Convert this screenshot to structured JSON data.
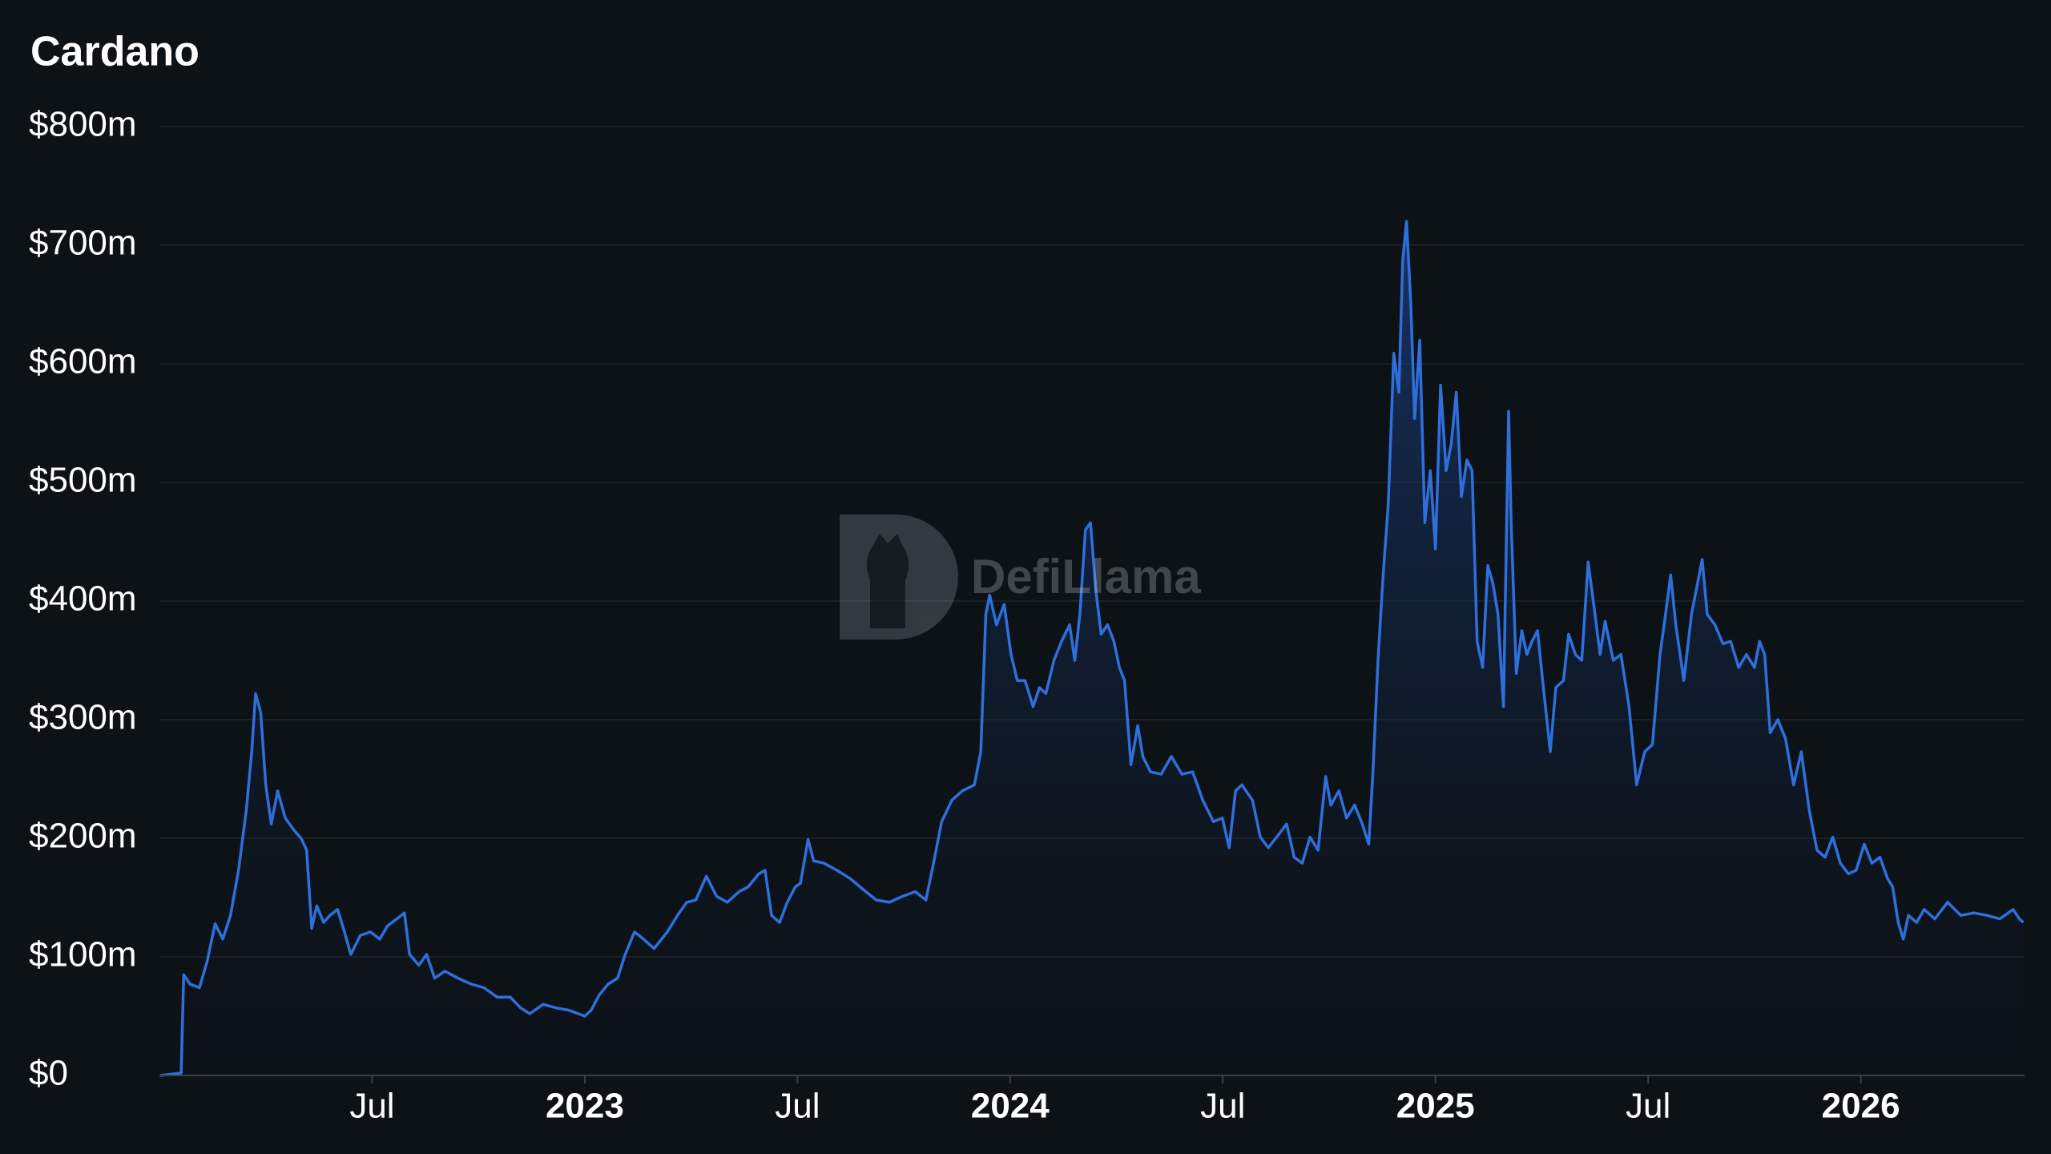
{
  "chart_data": {
    "type": "area",
    "title": "Cardano",
    "watermark": "DefiLlama",
    "color": "#2f6fdc",
    "x": [
      2022.002,
      2022.051,
      2022.057,
      2022.072,
      2022.094,
      2022.112,
      2022.131,
      2022.149,
      2022.167,
      2022.186,
      2022.204,
      2022.217,
      2022.226,
      2022.238,
      2022.25,
      2022.263,
      2022.278,
      2022.296,
      2022.318,
      2022.333,
      2022.346,
      2022.358,
      2022.37,
      2022.386,
      2022.401,
      2022.419,
      2022.435,
      2022.45,
      2022.472,
      2022.496,
      2022.518,
      2022.536,
      2022.558,
      2022.576,
      2022.588,
      2022.61,
      2022.628,
      2022.647,
      2022.671,
      2022.702,
      2022.733,
      2022.763,
      2022.794,
      2022.825,
      2022.849,
      2022.871,
      2022.902,
      2022.932,
      2022.963,
      2022.985,
      2023.0,
      2023.015,
      2023.034,
      2023.055,
      2023.077,
      2023.095,
      2023.117,
      2023.138,
      2023.163,
      2023.194,
      2023.218,
      2023.24,
      2023.261,
      2023.286,
      2023.31,
      2023.335,
      2023.363,
      2023.384,
      2023.409,
      2023.424,
      2023.439,
      2023.458,
      2023.476,
      2023.495,
      2023.507,
      2023.525,
      2023.538,
      2023.562,
      2023.593,
      2023.624,
      2023.654,
      2023.685,
      2023.716,
      2023.747,
      2023.777,
      2023.802,
      2023.82,
      2023.839,
      2023.863,
      2023.888,
      2023.916,
      2023.931,
      2023.943,
      2023.952,
      2023.968,
      2023.986,
      2024.002,
      2024.017,
      2024.035,
      2024.054,
      2024.069,
      2024.084,
      2024.103,
      2024.121,
      2024.14,
      2024.152,
      2024.164,
      2024.177,
      2024.189,
      2024.201,
      2024.214,
      2024.229,
      2024.244,
      2024.257,
      2024.269,
      2024.284,
      2024.3,
      2024.312,
      2024.33,
      2024.355,
      2024.379,
      2024.404,
      2024.429,
      2024.453,
      2024.478,
      2024.499,
      2024.515,
      2024.53,
      2024.545,
      2024.57,
      2024.588,
      2024.607,
      2024.631,
      2024.65,
      2024.668,
      2024.687,
      2024.705,
      2024.724,
      2024.742,
      2024.754,
      2024.773,
      2024.791,
      2024.81,
      2024.828,
      2024.843,
      2024.853,
      2024.865,
      2024.877,
      2024.889,
      2024.902,
      2024.914,
      2024.923,
      2024.932,
      2024.942,
      2024.951,
      2024.963,
      2024.975,
      2024.988,
      2025.0,
      2025.012,
      2025.025,
      2025.037,
      2025.049,
      2025.061,
      2025.074,
      2025.086,
      2025.098,
      2025.111,
      2025.123,
      2025.135,
      2025.147,
      2025.16,
      2025.172,
      2025.178,
      2025.19,
      2025.203,
      2025.215,
      2025.227,
      2025.24,
      2025.252,
      2025.27,
      2025.283,
      2025.301,
      2025.313,
      2025.329,
      2025.344,
      2025.359,
      2025.375,
      2025.387,
      2025.399,
      2025.418,
      2025.436,
      2025.455,
      2025.473,
      2025.492,
      2025.51,
      2025.528,
      2025.541,
      2025.553,
      2025.565,
      2025.584,
      2025.602,
      2025.614,
      2025.627,
      2025.639,
      2025.657,
      2025.676,
      2025.694,
      2025.713,
      2025.731,
      2025.75,
      2025.762,
      2025.774,
      2025.787,
      2025.805,
      2025.823,
      2025.842,
      2025.86,
      2025.879,
      2025.897,
      2025.916,
      2025.934,
      2025.952,
      2025.971,
      2025.989,
      2026.008,
      2026.026,
      2026.045,
      2026.063,
      2026.075,
      2026.088,
      2026.1,
      2026.112,
      2026.131,
      2026.149,
      2026.174,
      2026.204,
      2026.235,
      2026.266,
      2026.296,
      2026.327,
      2026.358,
      2026.373,
      2026.382
    ],
    "values": [
      0,
      2,
      85,
      77,
      74,
      96,
      128,
      115,
      135,
      173,
      223,
      273,
      322,
      306,
      245,
      212,
      240,
      217,
      206,
      200,
      190,
      124,
      143,
      129,
      135,
      140,
      121,
      102,
      118,
      121,
      115,
      126,
      132,
      137,
      102,
      93,
      102,
      82,
      88,
      82,
      77,
      74,
      66,
      66,
      57,
      52,
      60,
      57,
      55,
      52,
      50,
      55,
      68,
      77,
      82,
      102,
      121,
      115,
      107,
      121,
      135,
      146,
      148,
      168,
      151,
      146,
      155,
      159,
      170,
      173,
      135,
      129,
      146,
      159,
      162,
      199,
      181,
      179,
      173,
      166,
      157,
      148,
      146,
      151,
      155,
      148,
      179,
      214,
      232,
      240,
      245,
      273,
      389,
      405,
      380,
      397,
      355,
      333,
      333,
      311,
      327,
      322,
      350,
      366,
      380,
      350,
      389,
      460,
      466,
      411,
      372,
      380,
      366,
      344,
      333,
      262,
      295,
      269,
      256,
      254,
      269,
      254,
      256,
      232,
      214,
      217,
      192,
      240,
      245,
      232,
      201,
      192,
      203,
      212,
      184,
      179,
      201,
      190,
      252,
      228,
      240,
      217,
      228,
      212,
      195,
      256,
      350,
      422,
      482,
      609,
      576,
      687,
      720,
      651,
      554,
      620,
      466,
      510,
      444,
      582,
      510,
      532,
      576,
      488,
      519,
      510,
      366,
      344,
      430,
      415,
      389,
      311,
      560,
      466,
      339,
      375,
      355,
      366,
      375,
      333,
      273,
      327,
      333,
      372,
      355,
      350,
      433,
      389,
      355,
      383,
      350,
      355,
      311,
      245,
      273,
      279,
      355,
      389,
      422,
      380,
      333,
      389,
      411,
      435,
      389,
      380,
      364,
      366,
      344,
      355,
      344,
      366,
      355,
      289,
      300,
      284,
      245,
      273,
      223,
      190,
      184,
      201,
      179,
      170,
      173,
      195,
      179,
      184,
      166,
      159,
      129,
      115,
      135,
      129,
      140,
      132,
      146,
      135,
      137,
      135,
      132,
      140,
      132,
      129
    ],
    "xlim": [
      2022.0,
      2026.385
    ],
    "xticks": [
      {
        "value": 2022.5,
        "label": "Jul"
      },
      2023,
      {
        "value": 2023.5,
        "label": "Jul"
      },
      2024,
      {
        "value": 2024.5,
        "label": "Jul"
      },
      2025,
      {
        "value": 2025.5,
        "label": "Jul"
      },
      2026
    ],
    "ylim": [
      0,
      800
    ],
    "yticks": [
      {
        "value": 0,
        "label": "$0"
      },
      {
        "value": 100,
        "label": "$100m"
      },
      {
        "value": 200,
        "label": "$200m"
      },
      {
        "value": 300,
        "label": "$300m"
      },
      {
        "value": 400,
        "label": "$400m"
      },
      {
        "value": 500,
        "label": "$500m"
      },
      {
        "value": 600,
        "label": "$600m"
      },
      {
        "value": 700,
        "label": "$700m"
      },
      {
        "value": 800,
        "label": "$800m"
      }
    ],
    "grid": true
  }
}
